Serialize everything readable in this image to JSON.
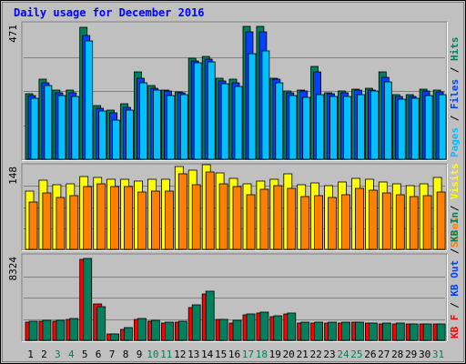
{
  "title": "Daily usage for December 2016",
  "colors": {
    "hits": "#00805c",
    "files": "#0040ff",
    "pages": "#00c0ff",
    "visits": "#ffff00",
    "sites": "#ff8000",
    "kbin": "#00805c",
    "kbout": "#0040ff",
    "kbf": "#ff0000",
    "weekend": "#00805c",
    "weekday": "#000000",
    "title": "#0000ff",
    "background": "#c0c0c0"
  },
  "chart_data": [
    {
      "type": "bar",
      "panel": "top",
      "ymax_label": "471",
      "ylim": [
        0,
        471
      ],
      "legend": [
        {
          "key": "pages",
          "text": "Pages"
        },
        {
          "key": "sep",
          "text": " / "
        },
        {
          "key": "files",
          "text": "Files"
        },
        {
          "key": "sep",
          "text": " / "
        },
        {
          "key": "hits",
          "text": "Hits"
        }
      ],
      "categories": [
        "1",
        "2",
        "3",
        "4",
        "5",
        "6",
        "7",
        "8",
        "9",
        "10",
        "11",
        "12",
        "13",
        "14",
        "15",
        "16",
        "17",
        "18",
        "19",
        "20",
        "21",
        "22",
        "23",
        "24",
        "25",
        "26",
        "27",
        "28",
        "29",
        "30",
        "31"
      ],
      "series": [
        {
          "name": "Hits",
          "values": [
            225,
            275,
            240,
            238,
            456,
            185,
            170,
            190,
            300,
            253,
            240,
            233,
            350,
            355,
            280,
            275,
            460,
            460,
            280,
            235,
            240,
            320,
            230,
            235,
            243,
            245,
            300,
            223,
            222,
            242,
            240
          ]
        },
        {
          "name": "Files",
          "values": [
            220,
            264,
            230,
            228,
            428,
            175,
            160,
            180,
            280,
            245,
            235,
            230,
            340,
            345,
            270,
            265,
            440,
            440,
            275,
            230,
            235,
            300,
            225,
            230,
            238,
            240,
            282,
            218,
            218,
            237,
            233
          ]
        },
        {
          "name": "Pages",
          "values": [
            210,
            255,
            220,
            218,
            408,
            165,
            135,
            170,
            265,
            240,
            220,
            222,
            333,
            335,
            260,
            250,
            365,
            373,
            265,
            220,
            212,
            224,
            216,
            218,
            224,
            236,
            266,
            206,
            210,
            220,
            222
          ]
        }
      ]
    },
    {
      "type": "bar",
      "panel": "middle",
      "ymax_label": "148",
      "ylim": [
        0,
        148
      ],
      "legend": [
        {
          "key": "sites",
          "text": "Sites"
        },
        {
          "key": "sep",
          "text": " / "
        },
        {
          "key": "visits",
          "text": "Visits"
        }
      ],
      "categories": [
        "1",
        "2",
        "3",
        "4",
        "5",
        "6",
        "7",
        "8",
        "9",
        "10",
        "11",
        "12",
        "13",
        "14",
        "15",
        "16",
        "17",
        "18",
        "19",
        "20",
        "21",
        "22",
        "23",
        "24",
        "25",
        "26",
        "27",
        "28",
        "29",
        "30",
        "31"
      ],
      "series": [
        {
          "name": "Visits",
          "values": [
            102,
            121,
            113,
            115,
            127,
            126,
            122,
            122,
            120,
            122,
            123,
            145,
            138,
            148,
            133,
            124,
            115,
            120,
            123,
            132,
            113,
            116,
            111,
            118,
            124,
            122,
            118,
            115,
            111,
            115,
            125
          ]
        },
        {
          "name": "Sites",
          "values": [
            82,
            98,
            90,
            94,
            110,
            115,
            110,
            110,
            100,
            102,
            102,
            132,
            113,
            135,
            115,
            110,
            95,
            105,
            112,
            106,
            92,
            94,
            90,
            96,
            106,
            103,
            99,
            95,
            92,
            94,
            100
          ]
        }
      ]
    },
    {
      "type": "bar",
      "panel": "bottom",
      "ymax_label": "8324",
      "ylim": [
        0,
        8324
      ],
      "legend": [
        {
          "key": "kbf",
          "text": "KB F"
        },
        {
          "key": "sep",
          "text": " / "
        },
        {
          "key": "kbout",
          "text": "KB Out"
        },
        {
          "key": "sep",
          "text": " / "
        },
        {
          "key": "kbin",
          "text": "KB In"
        }
      ],
      "categories": [
        "1",
        "2",
        "3",
        "4",
        "5",
        "6",
        "7",
        "8",
        "9",
        "10",
        "11",
        "12",
        "13",
        "14",
        "15",
        "16",
        "17",
        "18",
        "19",
        "20",
        "21",
        "22",
        "23",
        "24",
        "25",
        "26",
        "27",
        "28",
        "29",
        "30",
        "31"
      ],
      "series": [
        {
          "name": "KB F",
          "values": [
            1750,
            1850,
            1880,
            2060,
            7860,
            3500,
            600,
            1100,
            2060,
            1850,
            1650,
            1770,
            3200,
            4550,
            2000,
            1650,
            2450,
            2640,
            2300,
            2550,
            1710,
            1700,
            1700,
            1710,
            1730,
            1680,
            1580,
            1580,
            1560,
            1560,
            1560
          ]
        },
        {
          "name": "KB In",
          "values": [
            1900,
            1950,
            1980,
            2150,
            7960,
            3260,
            650,
            1200,
            2160,
            1950,
            1800,
            1880,
            3430,
            4760,
            2010,
            1910,
            2600,
            2740,
            2400,
            2680,
            1780,
            1760,
            1760,
            1780,
            1800,
            1720,
            1640,
            1640,
            1620,
            1600,
            1600
          ]
        }
      ]
    }
  ],
  "x_labels": [
    {
      "t": "1",
      "w": false
    },
    {
      "t": "2",
      "w": false
    },
    {
      "t": "3",
      "w": true
    },
    {
      "t": "4",
      "w": true
    },
    {
      "t": "5",
      "w": false
    },
    {
      "t": "6",
      "w": false
    },
    {
      "t": "7",
      "w": false
    },
    {
      "t": "8",
      "w": false
    },
    {
      "t": "9",
      "w": false
    },
    {
      "t": "10",
      "w": true
    },
    {
      "t": "11",
      "w": true
    },
    {
      "t": "12",
      "w": false
    },
    {
      "t": "13",
      "w": false
    },
    {
      "t": "14",
      "w": false
    },
    {
      "t": "15",
      "w": false
    },
    {
      "t": "16",
      "w": false
    },
    {
      "t": "17",
      "w": true
    },
    {
      "t": "18",
      "w": true
    },
    {
      "t": "19",
      "w": false
    },
    {
      "t": "20",
      "w": false
    },
    {
      "t": "21",
      "w": false
    },
    {
      "t": "22",
      "w": false
    },
    {
      "t": "23",
      "w": false
    },
    {
      "t": "24",
      "w": true
    },
    {
      "t": "25",
      "w": true
    },
    {
      "t": "26",
      "w": false
    },
    {
      "t": "27",
      "w": false
    },
    {
      "t": "28",
      "w": false
    },
    {
      "t": "29",
      "w": false
    },
    {
      "t": "30",
      "w": false
    },
    {
      "t": "31",
      "w": true
    }
  ]
}
